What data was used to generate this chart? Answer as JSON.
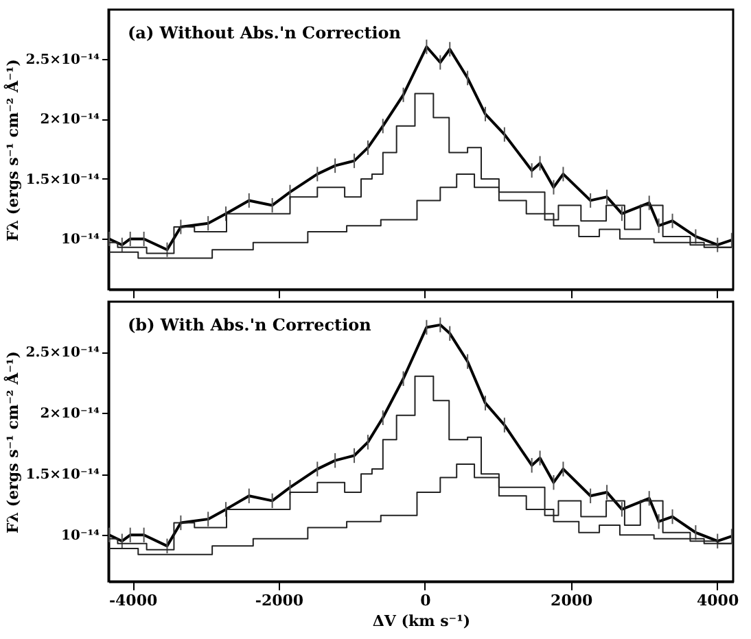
{
  "chart_data": [
    {
      "type": "line",
      "annotations": [
        "(a) Without Abs.'n Correction"
      ],
      "ylabel": "Fλ (ergs s⁻¹ cm⁻² Å⁻¹)",
      "xlim": [
        -4330,
        4220
      ],
      "xticks": [
        -4000,
        -2000,
        0,
        2000,
        4000
      ],
      "ylim": [
        5.8e-15,
        2.91e-14
      ],
      "yticks": [
        {
          "value": 1e-14,
          "label": "10⁻¹⁴"
        },
        {
          "value": 1.5e-14,
          "label": "1.5×10⁻¹⁴"
        },
        {
          "value": 2e-14,
          "label": "2×10⁻¹⁴"
        },
        {
          "value": 2.5e-14,
          "label": "2.5×10⁻¹⁴"
        }
      ],
      "tick_labels": "y",
      "grid": false,
      "line_style": "solid",
      "series": [
        {
          "color": "#000000",
          "x": [
            -4320,
            -4144,
            -4032,
            -3845,
            -3527,
            -3340,
            -2966,
            -2723,
            -2406,
            -2088,
            -1845,
            -1471,
            -1228,
            -966,
            -779,
            -574,
            -294,
            24,
            211,
            342,
            585,
            828,
            1090,
            1464,
            1576,
            1763,
            1894,
            2267,
            2492,
            2697,
            3071,
            3202,
            3389,
            3707,
            4006,
            4200
          ],
          "values": [
            1e-14,
            9.5e-15,
            1e-14,
            1e-14,
            9.1e-15,
            1.1e-14,
            1.13e-14,
            1.21e-14,
            1.32e-14,
            1.28e-14,
            1.39e-14,
            1.54e-14,
            1.61e-14,
            1.65e-14,
            1.76e-14,
            1.94e-14,
            2.2e-14,
            2.6e-14,
            2.47e-14,
            2.58e-14,
            2.34e-14,
            2.04e-14,
            1.87e-14,
            1.57e-14,
            1.63e-14,
            1.43e-14,
            1.54e-14,
            1.32e-14,
            1.35e-14,
            1.21e-14,
            1.3e-14,
            1.11e-14,
            1.15e-14,
            1.02e-14,
            9.5e-15,
            9.9e-15
          ],
          "errors": [
            6e-16,
            6e-16,
            6e-16,
            6e-16,
            6e-16,
            6e-16,
            6e-16,
            6e-16,
            6e-16,
            6e-16,
            6e-16,
            6e-16,
            6e-16,
            6e-16,
            6e-16,
            6e-16,
            6e-16,
            6e-16,
            6e-16,
            6e-16,
            6e-16,
            6e-16,
            6e-16,
            6e-16,
            6e-16,
            6e-16,
            6e-16,
            6e-16,
            6e-16,
            6e-16,
            6e-16,
            6e-16,
            6e-16,
            6e-16,
            6e-16,
            6e-16
          ]
        },
        {
          "type": "step",
          "color": "#222222",
          "x": [
            -4320,
            -4088,
            -3527,
            -3340,
            -2966,
            -2462,
            -1976,
            -1714,
            -1228,
            -966,
            -779,
            -667,
            -480,
            -294,
            24,
            211,
            454,
            716,
            828,
            1202,
            1576,
            1707,
            1950,
            2324,
            2641,
            2828,
            3071,
            3445,
            3819,
            4200
          ],
          "values": [
            9.7e-15,
            9.3e-15,
            8.8e-15,
            1.1e-14,
            1.06e-14,
            1.21e-14,
            1.21e-14,
            1.35e-14,
            1.43e-14,
            1.35e-14,
            1.5e-14,
            1.54e-14,
            1.72e-14,
            1.94e-14,
            2.21e-14,
            2.01e-14,
            1.72e-14,
            1.76e-14,
            1.5e-14,
            1.39e-14,
            1.39e-14,
            1.16e-14,
            1.28e-14,
            1.15e-14,
            1.28e-14,
            1.08e-14,
            1.28e-14,
            1.02e-14,
            9.5e-15,
            9.3e-15
          ]
        },
        {
          "type": "step",
          "color": "#222222",
          "x": [
            -4320,
            -3527,
            -3097,
            -2723,
            -1976,
            -1228,
            -910,
            -294,
            80,
            342,
            529,
            828,
            1202,
            1576,
            1950,
            2267,
            2510,
            2828,
            3445,
            4200
          ],
          "values": [
            8.9e-15,
            8.4e-15,
            8.4e-15,
            9.1e-15,
            9.7e-15,
            1.06e-14,
            1.11e-14,
            1.16e-14,
            1.32e-14,
            1.43e-14,
            1.54e-14,
            1.43e-14,
            1.32e-14,
            1.21e-14,
            1.11e-14,
            1.02e-14,
            1.08e-14,
            1e-14,
            9.7e-15,
            9.3e-15
          ]
        }
      ]
    },
    {
      "type": "line",
      "annotations": [
        "(b) With Abs.'n Correction"
      ],
      "ylabel": "Fλ (ergs s⁻¹ cm⁻² Å⁻¹)",
      "xlabel": "ΔV (km s⁻¹)",
      "xlim": [
        -4330,
        4220
      ],
      "xticks": [
        -4000,
        -2000,
        0,
        2000,
        4000
      ],
      "ylim": [
        6.2e-15,
        2.91e-14
      ],
      "yticks": [
        {
          "value": 1e-14,
          "label": "10⁻¹⁴"
        },
        {
          "value": 1.5e-14,
          "label": "1.5×10⁻¹⁴"
        },
        {
          "value": 2e-14,
          "label": "2×10⁻¹⁴"
        },
        {
          "value": 2.5e-14,
          "label": "2.5×10⁻¹⁴"
        }
      ],
      "grid": false,
      "line_style": "solid",
      "series": [
        {
          "color": "#000000",
          "x": [
            -4320,
            -4144,
            -4032,
            -3845,
            -3527,
            -3340,
            -2966,
            -2723,
            -2406,
            -2088,
            -1845,
            -1471,
            -1228,
            -966,
            -779,
            -574,
            -294,
            24,
            211,
            342,
            585,
            828,
            1090,
            1464,
            1576,
            1763,
            1894,
            2267,
            2492,
            2697,
            3071,
            3202,
            3389,
            3707,
            4006,
            4200
          ],
          "values": [
            1e-14,
            9.5e-15,
            1e-14,
            1e-14,
            9.1e-15,
            1.1e-14,
            1.13e-14,
            1.21e-14,
            1.32e-14,
            1.28e-14,
            1.39e-14,
            1.54e-14,
            1.61e-14,
            1.65e-14,
            1.76e-14,
            1.96e-14,
            2.28e-14,
            2.7e-14,
            2.72e-14,
            2.65e-14,
            2.42e-14,
            2.08e-14,
            1.9e-14,
            1.57e-14,
            1.63e-14,
            1.43e-14,
            1.54e-14,
            1.32e-14,
            1.35e-14,
            1.21e-14,
            1.3e-14,
            1.11e-14,
            1.15e-14,
            1.02e-14,
            9.5e-15,
            9.9e-15
          ],
          "errors": [
            6e-16,
            6e-16,
            6e-16,
            6e-16,
            6e-16,
            6e-16,
            6e-16,
            6e-16,
            6e-16,
            6e-16,
            6e-16,
            6e-16,
            6e-16,
            6e-16,
            6e-16,
            6e-16,
            6e-16,
            6e-16,
            6e-16,
            6e-16,
            6e-16,
            6e-16,
            6e-16,
            6e-16,
            6e-16,
            6e-16,
            6e-16,
            6e-16,
            6e-16,
            6e-16,
            6e-16,
            6e-16,
            6e-16,
            6e-16,
            6e-16,
            6e-16
          ]
        },
        {
          "type": "step",
          "color": "#222222",
          "x": [
            -4320,
            -4088,
            -3527,
            -3340,
            -2966,
            -2462,
            -1976,
            -1714,
            -1228,
            -966,
            -779,
            -667,
            -480,
            -294,
            24,
            211,
            454,
            716,
            828,
            1202,
            1576,
            1707,
            1950,
            2324,
            2641,
            2828,
            3071,
            3445,
            3819,
            4200
          ],
          "values": [
            9.7e-15,
            9.3e-15,
            8.8e-15,
            1.1e-14,
            1.06e-14,
            1.21e-14,
            1.21e-14,
            1.35e-14,
            1.43e-14,
            1.35e-14,
            1.5e-14,
            1.54e-14,
            1.78e-14,
            1.98e-14,
            2.3e-14,
            2.1e-14,
            1.78e-14,
            1.8e-14,
            1.5e-14,
            1.39e-14,
            1.39e-14,
            1.16e-14,
            1.28e-14,
            1.15e-14,
            1.28e-14,
            1.08e-14,
            1.28e-14,
            1.02e-14,
            9.5e-15,
            9.3e-15
          ]
        },
        {
          "type": "step",
          "color": "#222222",
          "x": [
            -4320,
            -3527,
            -3097,
            -2723,
            -1976,
            -1228,
            -910,
            -294,
            80,
            342,
            529,
            828,
            1202,
            1576,
            1950,
            2267,
            2510,
            2828,
            3445,
            4200
          ],
          "values": [
            8.9e-15,
            8.4e-15,
            8.4e-15,
            9.1e-15,
            9.7e-15,
            1.06e-14,
            1.11e-14,
            1.16e-14,
            1.35e-14,
            1.47e-14,
            1.58e-14,
            1.47e-14,
            1.32e-14,
            1.21e-14,
            1.11e-14,
            1.02e-14,
            1.08e-14,
            1e-14,
            9.7e-15,
            9.3e-15
          ]
        }
      ]
    }
  ]
}
